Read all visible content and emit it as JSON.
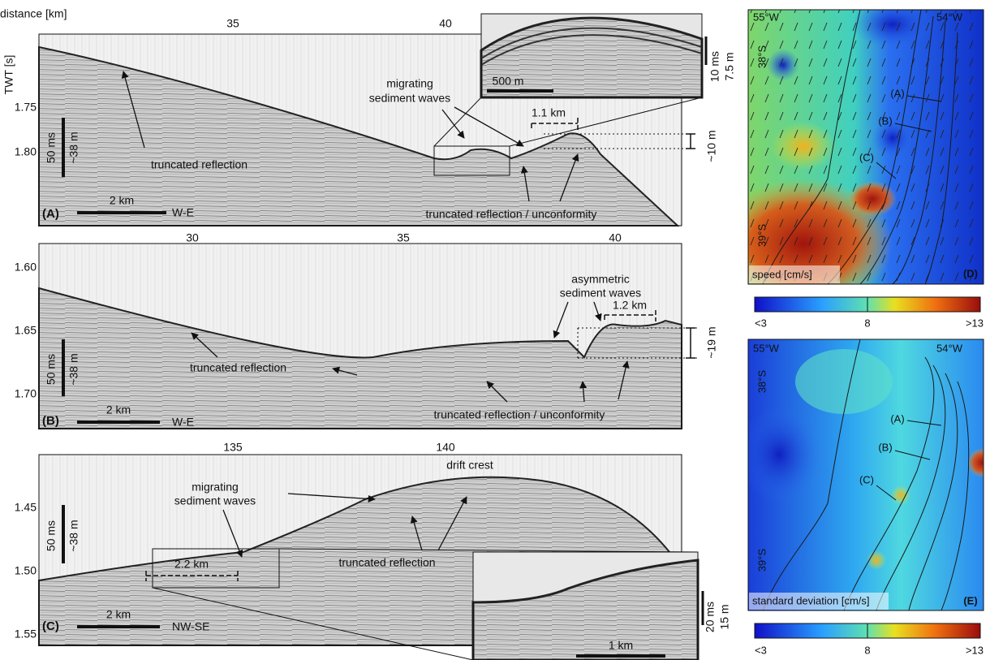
{
  "panel_a": {
    "axis_title": "distance [km]",
    "x_ticks": [
      "35",
      "40"
    ],
    "y_title": "TWT [s]",
    "y_ticks": [
      "1.75",
      "1.80"
    ],
    "scale_ms": "50 ms",
    "scale_m": "~38 m",
    "truncated": "truncated reflection",
    "waves": [
      "migrating",
      "sediment waves"
    ],
    "wavelength": "1.1 km",
    "height": "~10 m",
    "unconformity": "truncated reflection / unconformity",
    "scale_bar": "2 km",
    "direction": "W-E",
    "panel_label": "(A)",
    "inset": {
      "scale_bar": "500 m",
      "scale_ms": "10 ms",
      "scale_m": "7.5 m"
    }
  },
  "panel_b": {
    "x_ticks": [
      "30",
      "35",
      "40"
    ],
    "y_ticks": [
      "1.60",
      "1.65",
      "1.70"
    ],
    "scale_ms": "50 ms",
    "scale_m": "~38 m",
    "truncated": "truncated reflection",
    "waves": [
      "asymmetric",
      "sediment waves"
    ],
    "wavelength": "1.2 km",
    "height": "~19 m",
    "unconformity": "truncated reflection / unconformity",
    "scale_bar": "2 km",
    "direction": "W-E",
    "panel_label": "(B)"
  },
  "panel_c": {
    "x_ticks": [
      "135",
      "140"
    ],
    "y_ticks": [
      "1.45",
      "1.50",
      "1.55"
    ],
    "scale_ms": "50 ms",
    "scale_m": "~38 m",
    "waves": [
      "migrating",
      "sediment waves"
    ],
    "crest": "drift crest",
    "wavelength": "2.2 km",
    "truncated": "truncated reflection",
    "scale_bar": "2 km",
    "direction": "NW-SE",
    "panel_label": "(C)",
    "inset": {
      "scale_ms": "20 ms",
      "scale_m": "15 m",
      "scale_bar": "1 km"
    }
  },
  "panel_d": {
    "lon": [
      "55°W",
      "54°W"
    ],
    "lat": [
      "38°S",
      "39°S"
    ],
    "profiles": [
      "(A)",
      "(B)",
      "(C)"
    ],
    "quantity": "speed [cm/s]",
    "panel_label": "(D)",
    "colorbar": [
      "<3",
      "8",
      ">13"
    ]
  },
  "panel_e": {
    "lon": [
      "55°W",
      "54°W"
    ],
    "lat": [
      "38°S",
      "39°S"
    ],
    "profiles": [
      "(A)",
      "(B)",
      "(C)"
    ],
    "quantity": "standard deviation [cm/s]",
    "panel_label": "(E)",
    "colorbar": [
      "<3",
      "8",
      ">13"
    ]
  }
}
